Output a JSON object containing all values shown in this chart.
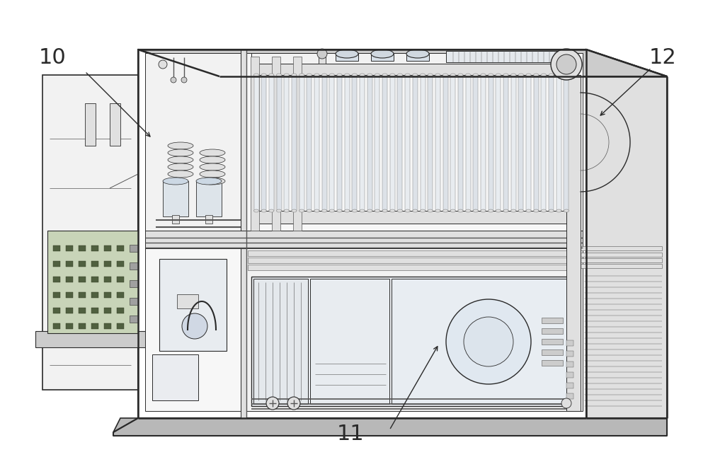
{
  "background_color": "#ffffff",
  "figure_width": 10.0,
  "figure_height": 6.46,
  "dpi": 100,
  "label_10": "10",
  "label_11": "11",
  "label_12": "12",
  "line_color": "#2a2a2a",
  "line_color_thin": "#555555",
  "fill_white": "#ffffff",
  "fill_light": "#f2f2f2",
  "fill_lighter": "#f7f7f7",
  "fill_medium": "#e0e0e0",
  "fill_dark": "#cccccc",
  "fill_darkest": "#b8b8b8"
}
